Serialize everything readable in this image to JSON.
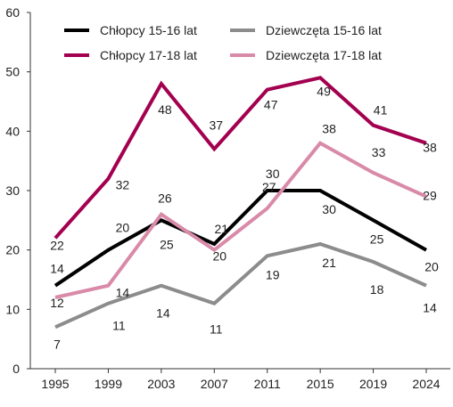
{
  "chart_data": {
    "type": "line",
    "title": "",
    "xlabel": "",
    "ylabel": "",
    "categories": [
      "1995",
      "1999",
      "2003",
      "2007",
      "2011",
      "2015",
      "2019",
      "2024"
    ],
    "ylim": [
      0,
      60
    ],
    "yticks": [
      0,
      10,
      20,
      30,
      40,
      50,
      60
    ],
    "grid": false,
    "legend_position": "top",
    "series": [
      {
        "name": "Chłopcy 15-16 lat",
        "color": "#000000",
        "values": [
          14,
          20,
          25,
          21,
          30,
          30,
          25,
          20
        ],
        "labels": [
          "14",
          "20",
          "25",
          "21",
          "30",
          "30",
          "25",
          "20"
        ]
      },
      {
        "name": "Chłopcy 17-18 lat",
        "color": "#a3004f",
        "values": [
          22,
          32,
          48,
          37,
          47,
          49,
          41,
          38
        ],
        "labels": [
          "22",
          "32",
          "48",
          "37",
          "47",
          "49",
          "41",
          "38"
        ]
      },
      {
        "name": "Dziewczęta 15-16 lat",
        "color": "#8c8c8c",
        "values": [
          7,
          11,
          14,
          11,
          19,
          21,
          18,
          14
        ],
        "labels": [
          "7",
          "11",
          "14",
          "11",
          "19",
          "21",
          "18",
          "14"
        ]
      },
      {
        "name": "Dziewczęta 17-18 lat",
        "color": "#d98aa8",
        "values": [
          12,
          14,
          26,
          20,
          27,
          38,
          33,
          29
        ],
        "labels": [
          "12",
          "14",
          "26",
          "20",
          "27",
          "38",
          "33",
          "29"
        ]
      }
    ]
  }
}
